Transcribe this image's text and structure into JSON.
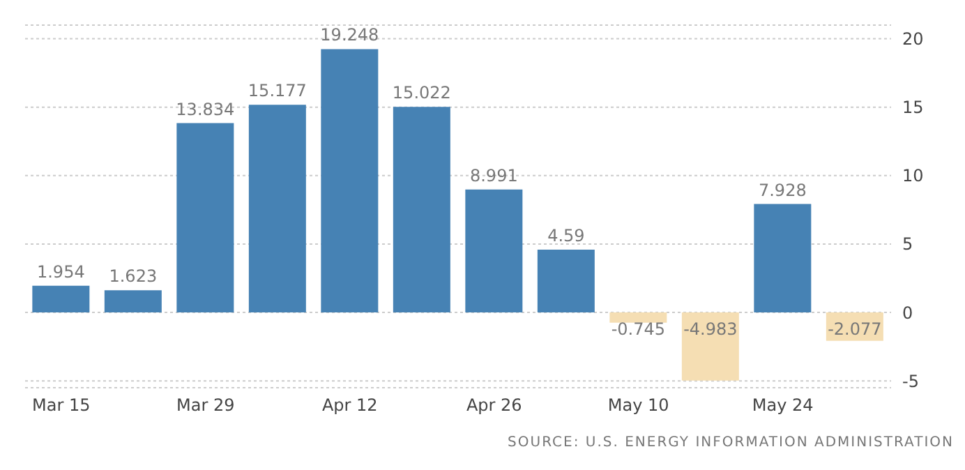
{
  "chart_data": {
    "type": "bar",
    "categories": [
      "Mar 15",
      null,
      "Mar 29",
      null,
      "Apr 12",
      null,
      "Apr 26",
      null,
      "May 10",
      null,
      "May 24",
      null
    ],
    "values": [
      1.954,
      1.623,
      13.834,
      15.177,
      19.248,
      15.022,
      8.991,
      4.59,
      -0.745,
      -4.983,
      7.928,
      -2.077
    ],
    "colors": [
      "#4682b4",
      "#4682b4",
      "#4682b4",
      "#4682b4",
      "#4682b4",
      "#4682b4",
      "#4682b4",
      "#4682b4",
      "#f5deb3",
      "#f5deb3",
      "#4682b4",
      "#f5deb3"
    ],
    "ylim": [
      -5.5,
      21
    ],
    "yticks": [
      -5,
      0,
      5,
      10,
      15,
      20
    ],
    "grid": "y",
    "data_labels": true,
    "annotations": [
      "SOURCE: U.S. ENERGY INFORMATION ADMINISTRATION"
    ]
  }
}
